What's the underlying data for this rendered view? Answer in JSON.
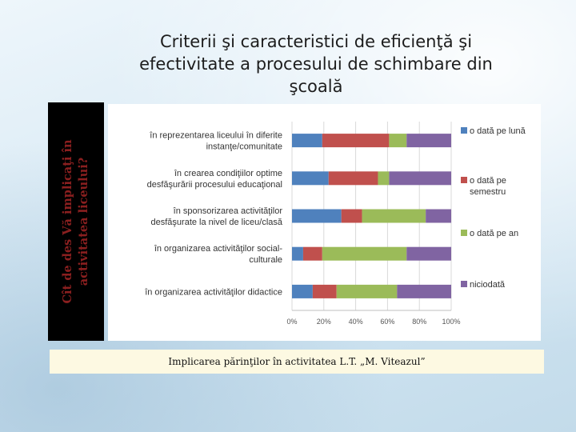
{
  "slide": {
    "title": "Criterii şi caracteristici de eficienţă şi efectivitate a procesului de schimbare din şcoală",
    "side_label": "Cît de des Vă implicaţi în activitatea liceului?",
    "caption": "Implicarea părinţilor în activitatea L.T. „M. Viteazul”"
  },
  "chart_data": {
    "type": "bar",
    "orientation": "horizontal",
    "stacked": "percent",
    "categories": [
      [
        "în reprezentarea liceului în diferite",
        "instanţe/comunitate"
      ],
      [
        "în crearea condiţiilor optime",
        "desfăşurării procesului educaţional"
      ],
      [
        "în sponsorizarea activităţilor",
        "desfăşurate la nivel de liceu/clasă"
      ],
      [
        "în organizarea activităţilor social-",
        "culturale"
      ],
      [
        "în organizarea activităţilor didactice"
      ]
    ],
    "series": [
      {
        "name": "o dată pe lună",
        "color": "#4f81bd",
        "values": [
          19,
          23,
          31,
          7,
          13
        ]
      },
      {
        "name": "o dată pe semestru",
        "color": "#c0504d",
        "values": [
          42,
          31,
          13,
          12,
          15
        ]
      },
      {
        "name": "o dată pe an",
        "color": "#9bbb59",
        "values": [
          11,
          7,
          40,
          53,
          38
        ]
      },
      {
        "name": "niciodată",
        "color": "#8064a2",
        "values": [
          28,
          39,
          16,
          28,
          34
        ]
      }
    ],
    "xlim": [
      0,
      100
    ],
    "xticks": [
      "0%",
      "20%",
      "40%",
      "60%",
      "80%",
      "100%"
    ],
    "grid": true,
    "legend": "right"
  }
}
